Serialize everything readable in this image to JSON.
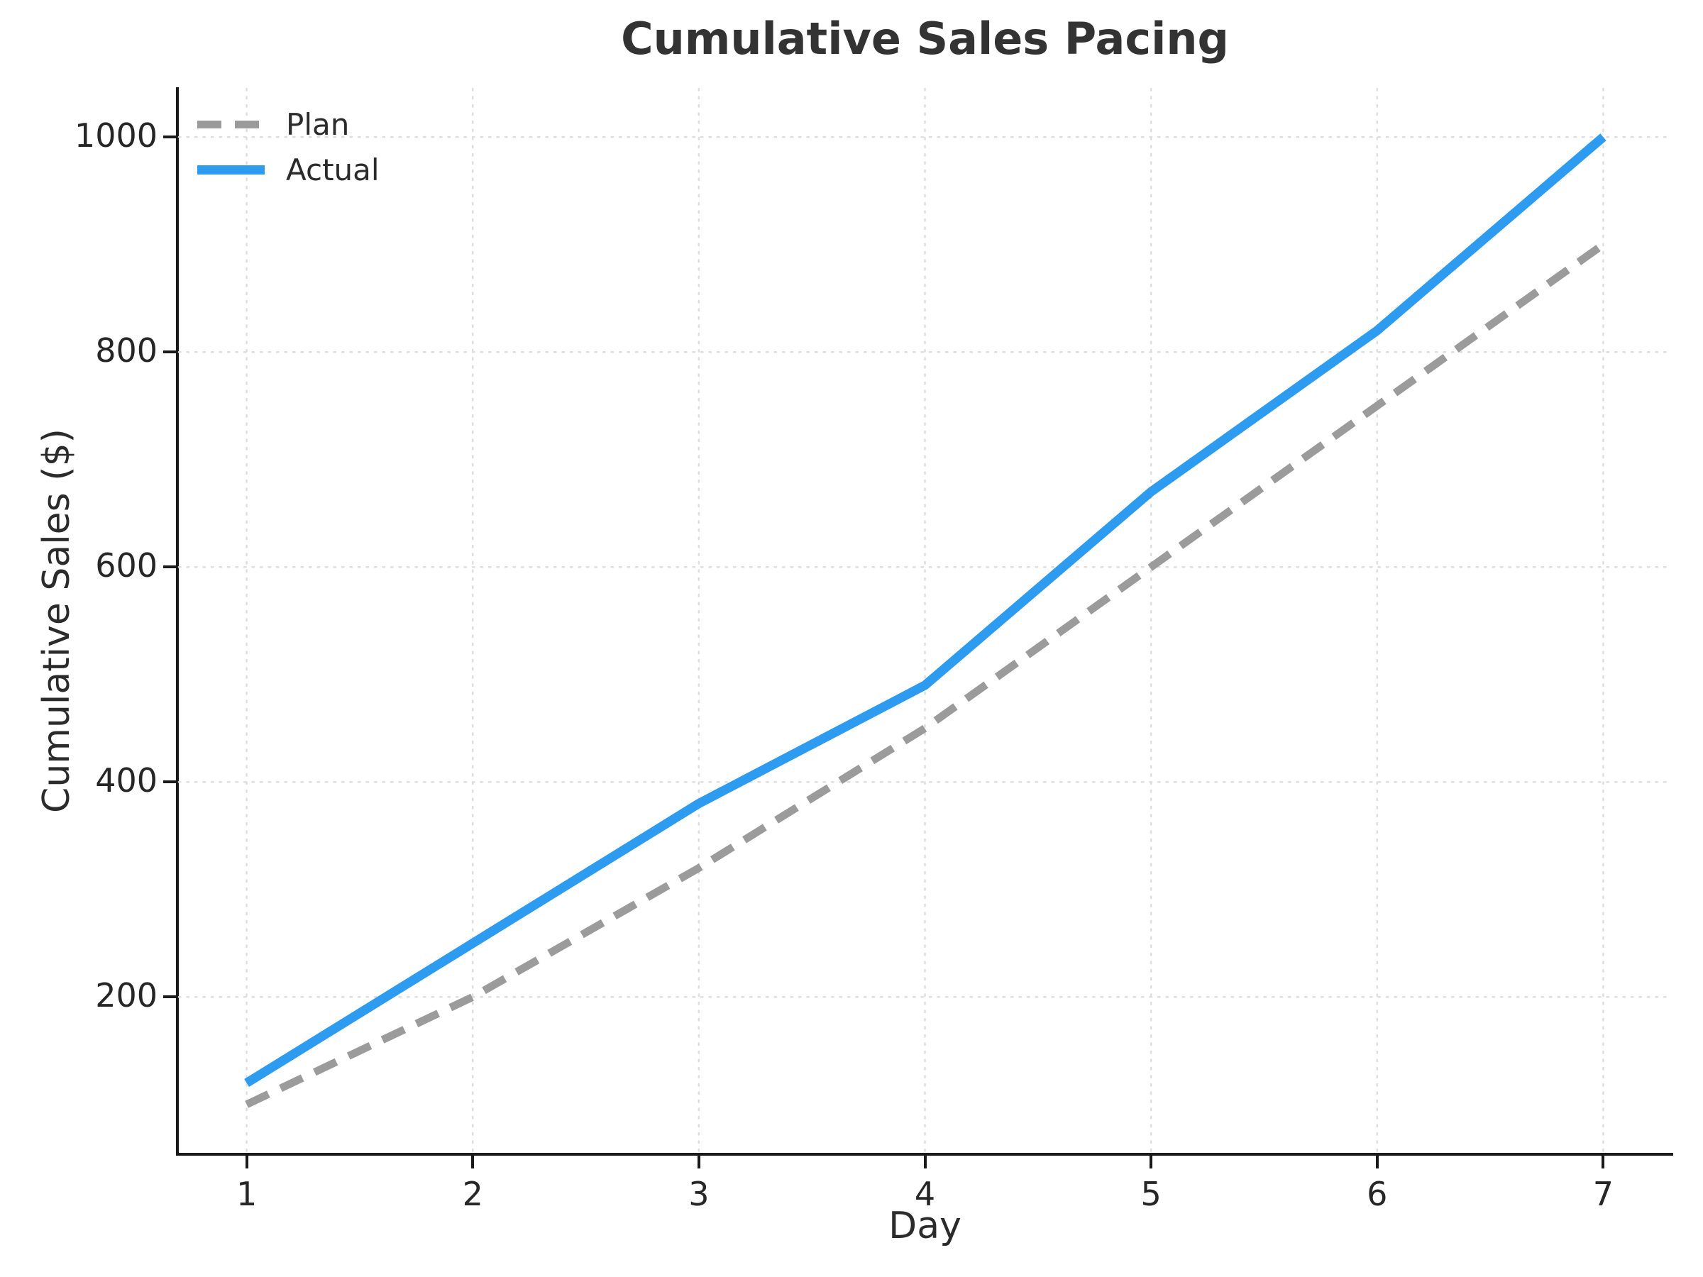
{
  "title": "Cumulative Sales Pacing",
  "chart_data": {
    "type": "line",
    "x": [
      1,
      2,
      3,
      4,
      5,
      6,
      7
    ],
    "series": [
      {
        "name": "Plan",
        "values": [
          100,
          200,
          320,
          450,
          600,
          750,
          900
        ],
        "color": "#9B9B9B",
        "line_style": "dashed",
        "line_width": 11
      },
      {
        "name": "Actual",
        "values": [
          120,
          250,
          380,
          490,
          670,
          820,
          1000
        ],
        "color": "#2D9BF0",
        "line_style": "solid",
        "line_width": 13
      }
    ],
    "title": "Cumulative Sales Pacing",
    "xlabel": "Day",
    "ylabel": "Cumulative Sales ($)",
    "xlim": [
      0.7,
      7.3
    ],
    "ylim": [
      55,
      1045
    ],
    "xticks": [
      1,
      2,
      3,
      4,
      5,
      6,
      7
    ],
    "yticks": [
      200,
      400,
      600,
      800,
      1000
    ],
    "grid": true,
    "grid_style": "dotted",
    "legend_position": "upper-left"
  },
  "colors": {
    "actual": "#2D9BF0",
    "plan": "#9B9B9B",
    "grid": "#DEDEDE",
    "spine": "#1A1A1A",
    "tick_text": "#262626",
    "title_text": "#333333",
    "background": "#FFFFFF"
  }
}
